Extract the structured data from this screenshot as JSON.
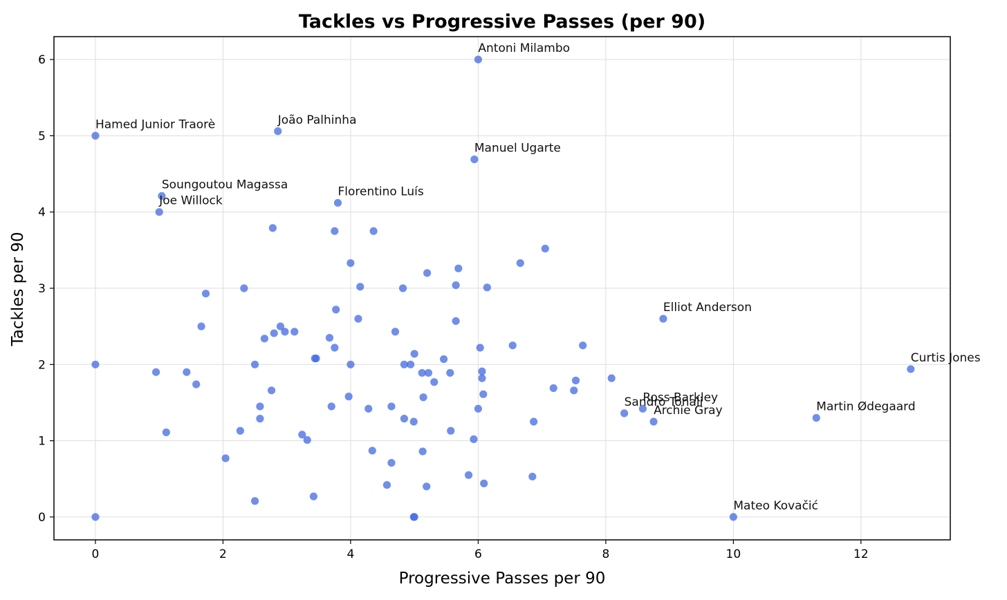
{
  "chart_data": {
    "type": "scatter",
    "title": "Tackles vs Progressive Passes (per 90)",
    "xlabel": "Progressive Passes per 90",
    "ylabel": "Tackles per 90",
    "xlim": [
      -0.65,
      13.4
    ],
    "ylim": [
      -0.3,
      6.3
    ],
    "xticks": [
      0,
      2,
      4,
      6,
      8,
      10,
      12
    ],
    "yticks": [
      0,
      1,
      2,
      3,
      4,
      5,
      6
    ],
    "grid": true,
    "marker_color": "#4169e1",
    "labeled_points": [
      {
        "label": "Antoni Milambo",
        "x": 6.0,
        "y": 6.0
      },
      {
        "label": "Hamed Junior Traorè",
        "x": 0.0,
        "y": 5.0
      },
      {
        "label": "João Palhinha",
        "x": 2.86,
        "y": 5.06
      },
      {
        "label": "Manuel Ugarte",
        "x": 5.94,
        "y": 4.69
      },
      {
        "label": "Soungoutou Magassa",
        "x": 1.04,
        "y": 4.21
      },
      {
        "label": "Joe Willock",
        "x": 1.0,
        "y": 4.0
      },
      {
        "label": "Florentino Luís",
        "x": 3.8,
        "y": 4.12
      },
      {
        "label": "Elliot Anderson",
        "x": 8.9,
        "y": 2.6
      },
      {
        "label": "Curtis Jones",
        "x": 12.78,
        "y": 1.94
      },
      {
        "label": "Ross Barkley",
        "x": 8.58,
        "y": 1.42
      },
      {
        "label": "Sandro Tonali",
        "x": 8.29,
        "y": 1.36
      },
      {
        "label": "Archie Gray",
        "x": 8.75,
        "y": 1.25
      },
      {
        "label": "Martin Ødegaard",
        "x": 11.3,
        "y": 1.3
      },
      {
        "label": "Mateo Kovačić",
        "x": 10.0,
        "y": 0.0
      }
    ],
    "points": [
      {
        "x": 2.78,
        "y": 3.79
      },
      {
        "x": 3.75,
        "y": 3.75
      },
      {
        "x": 4.36,
        "y": 3.75
      },
      {
        "x": 7.05,
        "y": 3.52
      },
      {
        "x": 4.0,
        "y": 3.33
      },
      {
        "x": 6.66,
        "y": 3.33
      },
      {
        "x": 5.2,
        "y": 3.2
      },
      {
        "x": 5.69,
        "y": 3.26
      },
      {
        "x": 2.33,
        "y": 3.0
      },
      {
        "x": 4.15,
        "y": 3.02
      },
      {
        "x": 4.82,
        "y": 3.0
      },
      {
        "x": 5.65,
        "y": 3.04
      },
      {
        "x": 6.14,
        "y": 3.01
      },
      {
        "x": 1.73,
        "y": 2.93
      },
      {
        "x": 3.77,
        "y": 2.72
      },
      {
        "x": 1.66,
        "y": 2.5
      },
      {
        "x": 4.12,
        "y": 2.6
      },
      {
        "x": 5.65,
        "y": 2.57
      },
      {
        "x": 2.9,
        "y": 2.5
      },
      {
        "x": 2.97,
        "y": 2.43
      },
      {
        "x": 3.12,
        "y": 2.43
      },
      {
        "x": 2.8,
        "y": 2.41
      },
      {
        "x": 2.65,
        "y": 2.34
      },
      {
        "x": 3.67,
        "y": 2.35
      },
      {
        "x": 4.7,
        "y": 2.43
      },
      {
        "x": 3.75,
        "y": 2.22
      },
      {
        "x": 6.03,
        "y": 2.22
      },
      {
        "x": 6.54,
        "y": 2.25
      },
      {
        "x": 7.64,
        "y": 2.25
      },
      {
        "x": 3.44,
        "y": 2.08
      },
      {
        "x": 3.46,
        "y": 2.08
      },
      {
        "x": 5.0,
        "y": 2.14
      },
      {
        "x": 5.46,
        "y": 2.07
      },
      {
        "x": 0.0,
        "y": 2.0
      },
      {
        "x": 2.5,
        "y": 2.0
      },
      {
        "x": 4.0,
        "y": 2.0
      },
      {
        "x": 4.84,
        "y": 2.0
      },
      {
        "x": 4.94,
        "y": 2.0
      },
      {
        "x": 0.95,
        "y": 1.9
      },
      {
        "x": 1.43,
        "y": 1.9
      },
      {
        "x": 5.12,
        "y": 1.89
      },
      {
        "x": 5.22,
        "y": 1.89
      },
      {
        "x": 5.56,
        "y": 1.89
      },
      {
        "x": 6.06,
        "y": 1.91
      },
      {
        "x": 6.06,
        "y": 1.82
      },
      {
        "x": 5.31,
        "y": 1.77
      },
      {
        "x": 7.53,
        "y": 1.79
      },
      {
        "x": 8.09,
        "y": 1.82
      },
      {
        "x": 1.58,
        "y": 1.74
      },
      {
        "x": 2.76,
        "y": 1.66
      },
      {
        "x": 7.18,
        "y": 1.69
      },
      {
        "x": 7.5,
        "y": 1.66
      },
      {
        "x": 6.08,
        "y": 1.61
      },
      {
        "x": 3.97,
        "y": 1.58
      },
      {
        "x": 5.14,
        "y": 1.57
      },
      {
        "x": 2.58,
        "y": 1.45
      },
      {
        "x": 3.7,
        "y": 1.45
      },
      {
        "x": 4.28,
        "y": 1.42
      },
      {
        "x": 4.64,
        "y": 1.45
      },
      {
        "x": 6.0,
        "y": 1.42
      },
      {
        "x": 2.58,
        "y": 1.29
      },
      {
        "x": 4.84,
        "y": 1.29
      },
      {
        "x": 4.99,
        "y": 1.25
      },
      {
        "x": 6.87,
        "y": 1.25
      },
      {
        "x": 1.11,
        "y": 1.11
      },
      {
        "x": 2.27,
        "y": 1.13
      },
      {
        "x": 3.24,
        "y": 1.08
      },
      {
        "x": 3.32,
        "y": 1.01
      },
      {
        "x": 5.57,
        "y": 1.13
      },
      {
        "x": 5.93,
        "y": 1.02
      },
      {
        "x": 4.34,
        "y": 0.87
      },
      {
        "x": 5.13,
        "y": 0.86
      },
      {
        "x": 2.04,
        "y": 0.77
      },
      {
        "x": 4.64,
        "y": 0.71
      },
      {
        "x": 5.85,
        "y": 0.55
      },
      {
        "x": 6.85,
        "y": 0.53
      },
      {
        "x": 4.57,
        "y": 0.42
      },
      {
        "x": 5.19,
        "y": 0.4
      },
      {
        "x": 6.09,
        "y": 0.44
      },
      {
        "x": 2.5,
        "y": 0.21
      },
      {
        "x": 3.42,
        "y": 0.27
      },
      {
        "x": 0.0,
        "y": 0.0
      },
      {
        "x": 4.99,
        "y": 0.0
      },
      {
        "x": 5.0,
        "y": 0.0
      }
    ]
  }
}
